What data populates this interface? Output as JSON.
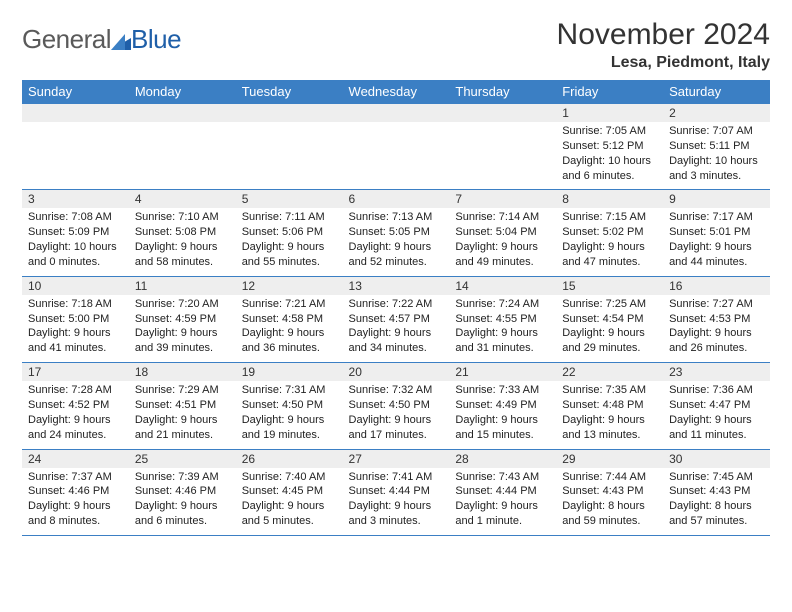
{
  "brand": {
    "general": "General",
    "blue": "Blue"
  },
  "header": {
    "month_title": "November 2024",
    "location": "Lesa, Piedmont, Italy"
  },
  "colors": {
    "header_bg": "#3b7fc4",
    "header_text": "#ffffff",
    "daynum_bg": "#eeeeee",
    "rule": "#3b7fc4",
    "text": "#222222"
  },
  "weekdays": [
    "Sunday",
    "Monday",
    "Tuesday",
    "Wednesday",
    "Thursday",
    "Friday",
    "Saturday"
  ],
  "weeks": [
    [
      null,
      null,
      null,
      null,
      null,
      {
        "num": "1",
        "sunrise": "Sunrise: 7:05 AM",
        "sunset": "Sunset: 5:12 PM",
        "daylight": "Daylight: 10 hours and 6 minutes."
      },
      {
        "num": "2",
        "sunrise": "Sunrise: 7:07 AM",
        "sunset": "Sunset: 5:11 PM",
        "daylight": "Daylight: 10 hours and 3 minutes."
      }
    ],
    [
      {
        "num": "3",
        "sunrise": "Sunrise: 7:08 AM",
        "sunset": "Sunset: 5:09 PM",
        "daylight": "Daylight: 10 hours and 0 minutes."
      },
      {
        "num": "4",
        "sunrise": "Sunrise: 7:10 AM",
        "sunset": "Sunset: 5:08 PM",
        "daylight": "Daylight: 9 hours and 58 minutes."
      },
      {
        "num": "5",
        "sunrise": "Sunrise: 7:11 AM",
        "sunset": "Sunset: 5:06 PM",
        "daylight": "Daylight: 9 hours and 55 minutes."
      },
      {
        "num": "6",
        "sunrise": "Sunrise: 7:13 AM",
        "sunset": "Sunset: 5:05 PM",
        "daylight": "Daylight: 9 hours and 52 minutes."
      },
      {
        "num": "7",
        "sunrise": "Sunrise: 7:14 AM",
        "sunset": "Sunset: 5:04 PM",
        "daylight": "Daylight: 9 hours and 49 minutes."
      },
      {
        "num": "8",
        "sunrise": "Sunrise: 7:15 AM",
        "sunset": "Sunset: 5:02 PM",
        "daylight": "Daylight: 9 hours and 47 minutes."
      },
      {
        "num": "9",
        "sunrise": "Sunrise: 7:17 AM",
        "sunset": "Sunset: 5:01 PM",
        "daylight": "Daylight: 9 hours and 44 minutes."
      }
    ],
    [
      {
        "num": "10",
        "sunrise": "Sunrise: 7:18 AM",
        "sunset": "Sunset: 5:00 PM",
        "daylight": "Daylight: 9 hours and 41 minutes."
      },
      {
        "num": "11",
        "sunrise": "Sunrise: 7:20 AM",
        "sunset": "Sunset: 4:59 PM",
        "daylight": "Daylight: 9 hours and 39 minutes."
      },
      {
        "num": "12",
        "sunrise": "Sunrise: 7:21 AM",
        "sunset": "Sunset: 4:58 PM",
        "daylight": "Daylight: 9 hours and 36 minutes."
      },
      {
        "num": "13",
        "sunrise": "Sunrise: 7:22 AM",
        "sunset": "Sunset: 4:57 PM",
        "daylight": "Daylight: 9 hours and 34 minutes."
      },
      {
        "num": "14",
        "sunrise": "Sunrise: 7:24 AM",
        "sunset": "Sunset: 4:55 PM",
        "daylight": "Daylight: 9 hours and 31 minutes."
      },
      {
        "num": "15",
        "sunrise": "Sunrise: 7:25 AM",
        "sunset": "Sunset: 4:54 PM",
        "daylight": "Daylight: 9 hours and 29 minutes."
      },
      {
        "num": "16",
        "sunrise": "Sunrise: 7:27 AM",
        "sunset": "Sunset: 4:53 PM",
        "daylight": "Daylight: 9 hours and 26 minutes."
      }
    ],
    [
      {
        "num": "17",
        "sunrise": "Sunrise: 7:28 AM",
        "sunset": "Sunset: 4:52 PM",
        "daylight": "Daylight: 9 hours and 24 minutes."
      },
      {
        "num": "18",
        "sunrise": "Sunrise: 7:29 AM",
        "sunset": "Sunset: 4:51 PM",
        "daylight": "Daylight: 9 hours and 21 minutes."
      },
      {
        "num": "19",
        "sunrise": "Sunrise: 7:31 AM",
        "sunset": "Sunset: 4:50 PM",
        "daylight": "Daylight: 9 hours and 19 minutes."
      },
      {
        "num": "20",
        "sunrise": "Sunrise: 7:32 AM",
        "sunset": "Sunset: 4:50 PM",
        "daylight": "Daylight: 9 hours and 17 minutes."
      },
      {
        "num": "21",
        "sunrise": "Sunrise: 7:33 AM",
        "sunset": "Sunset: 4:49 PM",
        "daylight": "Daylight: 9 hours and 15 minutes."
      },
      {
        "num": "22",
        "sunrise": "Sunrise: 7:35 AM",
        "sunset": "Sunset: 4:48 PM",
        "daylight": "Daylight: 9 hours and 13 minutes."
      },
      {
        "num": "23",
        "sunrise": "Sunrise: 7:36 AM",
        "sunset": "Sunset: 4:47 PM",
        "daylight": "Daylight: 9 hours and 11 minutes."
      }
    ],
    [
      {
        "num": "24",
        "sunrise": "Sunrise: 7:37 AM",
        "sunset": "Sunset: 4:46 PM",
        "daylight": "Daylight: 9 hours and 8 minutes."
      },
      {
        "num": "25",
        "sunrise": "Sunrise: 7:39 AM",
        "sunset": "Sunset: 4:46 PM",
        "daylight": "Daylight: 9 hours and 6 minutes."
      },
      {
        "num": "26",
        "sunrise": "Sunrise: 7:40 AM",
        "sunset": "Sunset: 4:45 PM",
        "daylight": "Daylight: 9 hours and 5 minutes."
      },
      {
        "num": "27",
        "sunrise": "Sunrise: 7:41 AM",
        "sunset": "Sunset: 4:44 PM",
        "daylight": "Daylight: 9 hours and 3 minutes."
      },
      {
        "num": "28",
        "sunrise": "Sunrise: 7:43 AM",
        "sunset": "Sunset: 4:44 PM",
        "daylight": "Daylight: 9 hours and 1 minute."
      },
      {
        "num": "29",
        "sunrise": "Sunrise: 7:44 AM",
        "sunset": "Sunset: 4:43 PM",
        "daylight": "Daylight: 8 hours and 59 minutes."
      },
      {
        "num": "30",
        "sunrise": "Sunrise: 7:45 AM",
        "sunset": "Sunset: 4:43 PM",
        "daylight": "Daylight: 8 hours and 57 minutes."
      }
    ]
  ]
}
